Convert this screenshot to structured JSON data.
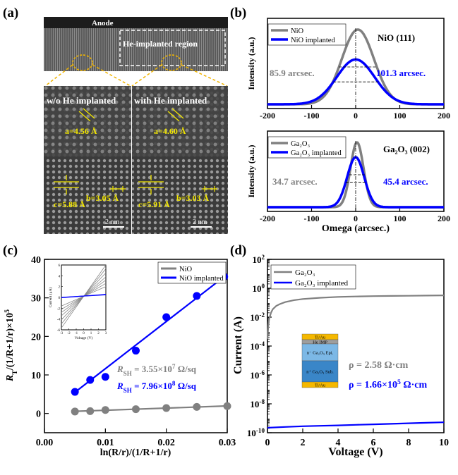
{
  "panel_a": {
    "label": "(a)",
    "anode_label": "Anode",
    "region_label": "He-implanted region",
    "left_title": "w/o He implanted",
    "right_title": "with He implanted",
    "left_a": "a=4.56 Å",
    "left_b": "b=3.05 Å",
    "left_c": "c=5.88 Å",
    "right_a": "a=4.60 Å",
    "right_b": "b=3.03 Å",
    "right_c": "c=5.91 Å",
    "scale_left": "2 nm",
    "scale_right": "2 nm"
  },
  "chart_data": [
    {
      "id": "b-top",
      "type": "line",
      "panel_label": "(b)",
      "title": "NiO (111)",
      "ylabel": "Intensity (a.u.)",
      "xlim": [
        -200,
        200
      ],
      "xticks": [
        -200,
        -100,
        0,
        100,
        200
      ],
      "legend_position": "top-left",
      "series": [
        {
          "name": "NiO",
          "color": "#808080",
          "center": 5,
          "fwhm": 85.9,
          "amplitude": 1.0
        },
        {
          "name": "NiO implanted",
          "color": "#0000ff",
          "center": 0,
          "fwhm": 101.3,
          "amplitude": 0.6
        }
      ],
      "annotations": [
        "85.9 arcsec.",
        "101.3 arcsec."
      ]
    },
    {
      "id": "b-bottom",
      "type": "line",
      "title": "Ga₂O₃ (002)",
      "ylabel": "Intensity (a.u.)",
      "xlabel": "Omega (arcsec.)",
      "xlim": [
        -200,
        200
      ],
      "xticks": [
        -200,
        -100,
        0,
        100,
        200
      ],
      "legend_position": "top-left",
      "series": [
        {
          "name": "Ga₂O₃",
          "color": "#808080",
          "center": 3,
          "fwhm": 34.7,
          "amplitude": 1.0
        },
        {
          "name": "Ga₂O₃ implanted",
          "color": "#0000ff",
          "center": 0,
          "fwhm": 45.4,
          "amplitude": 0.77
        }
      ],
      "annotations": [
        "34.7 arcsec.",
        "45.4 arcsec."
      ]
    },
    {
      "id": "c",
      "type": "scatter",
      "panel_label": "(c)",
      "xlabel": "ln(R/r)/(1/R+1/r)",
      "ylabel": "R_T/(1/R+1/r)×10^5",
      "xlim": [
        0.0,
        0.03
      ],
      "ylim": [
        -5,
        40
      ],
      "xticks": [
        0.0,
        0.01,
        0.02,
        0.03
      ],
      "yticks": [
        0,
        10,
        20,
        30,
        40
      ],
      "legend_position": "top-right",
      "series": [
        {
          "name": "NiO",
          "color": "#808080",
          "x": [
            0.005,
            0.0075,
            0.01,
            0.015,
            0.02,
            0.025,
            0.03
          ],
          "y": [
            0.5,
            0.6,
            0.9,
            1.1,
            1.4,
            1.7,
            1.9
          ],
          "fit": [
            [
              0.005,
              0.55
            ],
            [
              0.03,
              1.95
            ]
          ]
        },
        {
          "name": "NiO implanted",
          "color": "#0000ff",
          "x": [
            0.005,
            0.0075,
            0.01,
            0.015,
            0.02,
            0.025,
            0.0295
          ],
          "y": [
            5.6,
            8.7,
            9.5,
            16.3,
            25.0,
            30.5,
            35.5
          ],
          "fit": [
            [
              0.005,
              5.5
            ],
            [
              0.0295,
              35.5
            ]
          ]
        }
      ],
      "annotations": [
        {
          "text": "R_SH = 3.55×10^7 Ω/sq",
          "color": "#808080"
        },
        {
          "text": "R_SH = 7.96×10^8 Ω/sq",
          "color": "#0000ff"
        }
      ],
      "inset": {
        "type": "line",
        "xlabel": "Voltage (V)",
        "ylabel": "Current (μA)",
        "xlim": [
          -3,
          3
        ],
        "ylim": [
          -6,
          6
        ],
        "xticks": [
          -3,
          -2,
          -1,
          0,
          1,
          2,
          3
        ],
        "yticks": [
          -6,
          -4,
          -2,
          0,
          2,
          4,
          6
        ],
        "gray_slopes": [
          0.6,
          0.8,
          1.0,
          1.2,
          1.45,
          1.7,
          1.95
        ],
        "gray_offset": 0.2,
        "blue_slopes": [
          0.08,
          0.1
        ],
        "blue_offset": 0.25
      }
    },
    {
      "id": "d",
      "type": "line",
      "panel_label": "(d)",
      "xlabel": "Voltage (V)",
      "ylabel": "Current (A)",
      "xlim": [
        0,
        10
      ],
      "ylog": true,
      "ylim_exp": [
        -10,
        2
      ],
      "xticks": [
        0,
        2,
        4,
        6,
        8,
        10
      ],
      "ytick_exps": [
        -10,
        -8,
        -6,
        -4,
        -2,
        0,
        2
      ],
      "legend_position": "top-left",
      "series": [
        {
          "name": "Ga₂O₃",
          "color": "#808080",
          "x": [
            0,
            0.05,
            0.1,
            0.2,
            0.3,
            0.5,
            0.7,
            1,
            1.5,
            2,
            3,
            4,
            5,
            6,
            7,
            8,
            9,
            10
          ],
          "y": [
            0.0003,
            0.003,
            0.008,
            0.02,
            0.035,
            0.06,
            0.08,
            0.11,
            0.15,
            0.18,
            0.22,
            0.25,
            0.27,
            0.285,
            0.295,
            0.3,
            0.31,
            0.32
          ]
        },
        {
          "name": "Ga₂O₃ implanted",
          "color": "#0000ff",
          "x": [
            0,
            1,
            2,
            3,
            4,
            5,
            6,
            7,
            8,
            9,
            10
          ],
          "y": [
            2.2e-10,
            2.5e-10,
            2.8e-10,
            3e-10,
            3.2e-10,
            3.5e-10,
            3.8e-10,
            4.1e-10,
            4.5e-10,
            4.9e-10,
            5.3e-10
          ]
        }
      ],
      "annotations": [
        {
          "text": "ρ = 2.58 Ω·cm",
          "color": "#808080"
        },
        {
          "text": "ρ = 1.66×10^5 Ω·cm",
          "color": "#0000ff"
        }
      ],
      "inset_layers": [
        {
          "label": "Ti/Au",
          "color": "#f5b800"
        },
        {
          "label": "He IMP",
          "color": "#9e9e9e"
        },
        {
          "label": "n⁻ Ga₂O₃ Epi.",
          "color": "#7cb8e6"
        },
        {
          "label": "n⁺ Ga₂O₃ Sub.",
          "color": "#3a86c8"
        },
        {
          "label": "Ti/Au",
          "color": "#f5b800"
        }
      ]
    }
  ]
}
